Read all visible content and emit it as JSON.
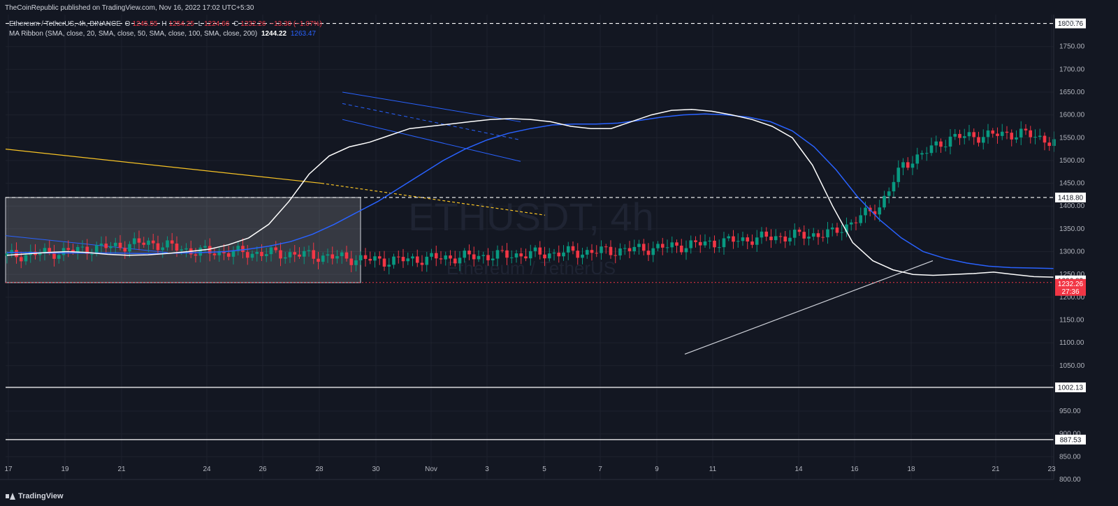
{
  "header": {
    "publisher": "TheCoinRepublic published on TradingView.com, Nov 16, 2022 17:02 UTC+5:30",
    "symbol": "Ethereum / TetherUS, 4h, BINANCE",
    "ohlc": {
      "o_label": "O",
      "o": "1245.55",
      "h_label": "H",
      "h": "1254.25",
      "l_label": "L",
      "l": "1224.66",
      "c_label": "C",
      "c": "1232.26",
      "change": "−13.30 (−1.07%)"
    },
    "indicator": "MA Ribbon (SMA, close, 20, SMA, close, 50, SMA, close, 100, SMA, close, 200)",
    "indicator_values": [
      "1244.22",
      "1263.47"
    ]
  },
  "currency": "USDT",
  "watermark": {
    "symbol": "ETHUSDT, 4h",
    "name": "Ethereum / TetherUS"
  },
  "brand": "TradingView",
  "countdown": "27:36",
  "colors": {
    "background": "#131722",
    "grid": "#1e222d",
    "up": "#089981",
    "down": "#f23645",
    "ma20": "#ffffff",
    "ma50": "#2962ff",
    "trend": "#f7c325"
  },
  "chart_data": {
    "type": "candlestick",
    "timeframe": "4h",
    "ylim": [
      800,
      1820
    ],
    "y_ticks": [
      800,
      850,
      900,
      950,
      1000,
      1050,
      1100,
      1150,
      1200,
      1250,
      1300,
      1350,
      1400,
      1450,
      1500,
      1550,
      1600,
      1650,
      1700,
      1750
    ],
    "x_ticks": [
      "17",
      "19",
      "21",
      "24",
      "26",
      "28",
      "30",
      "Nov",
      "3",
      "5",
      "7",
      "9",
      "11",
      "14",
      "16",
      "18",
      "21",
      "23"
    ],
    "horizontal_levels": [
      {
        "value": 1800.76,
        "label": "1800.76",
        "style": "dashed"
      },
      {
        "value": 1418.8,
        "label": "1418.80",
        "style": "dashed"
      },
      {
        "value": 1236.83,
        "label": "1236.83",
        "style": "solid"
      },
      {
        "value": 1002.13,
        "label": "1002.13",
        "style": "solid"
      },
      {
        "value": 887.53,
        "label": "887.53",
        "style": "solid"
      }
    ],
    "last_price": {
      "value": 1232.26,
      "label": "1232.26"
    },
    "series": [
      {
        "name": "Ethereum / TetherUS",
        "anchors": [
          [
            0,
            1290
          ],
          [
            12,
            1300
          ],
          [
            30,
            1320
          ],
          [
            40,
            1300
          ],
          [
            60,
            1295
          ],
          [
            80,
            1280
          ],
          [
            100,
            1290
          ],
          [
            125,
            1300
          ],
          [
            140,
            1310
          ],
          [
            160,
            1330
          ],
          [
            175,
            1340
          ],
          [
            185,
            1400
          ],
          [
            190,
            1490
          ],
          [
            200,
            1550
          ],
          [
            215,
            1560
          ],
          [
            230,
            1520
          ],
          [
            245,
            1500
          ],
          [
            258,
            1560
          ],
          [
            265,
            1600
          ],
          [
            285,
            1610
          ],
          [
            300,
            1590
          ],
          [
            315,
            1600
          ],
          [
            330,
            1580
          ],
          [
            345,
            1560
          ],
          [
            358,
            1540
          ],
          [
            368,
            1530
          ],
          [
            380,
            1610
          ],
          [
            395,
            1640
          ],
          [
            410,
            1620
          ],
          [
            425,
            1600
          ],
          [
            435,
            1560
          ],
          [
            440,
            1540
          ],
          [
            450,
            1480
          ],
          [
            462,
            1380
          ],
          [
            470,
            1280
          ],
          [
            476,
            1250
          ],
          [
            481,
            1220
          ],
          [
            486,
            1200
          ],
          [
            490,
            1160
          ],
          [
            496,
            1180
          ],
          [
            505,
            1230
          ],
          [
            512,
            1300
          ],
          [
            522,
            1270
          ],
          [
            530,
            1250
          ],
          [
            540,
            1260
          ],
          [
            550,
            1270
          ],
          [
            560,
            1240
          ],
          [
            570,
            1220
          ],
          [
            578,
            1230
          ],
          [
            585,
            1250
          ],
          [
            595,
            1265
          ],
          [
            605,
            1260
          ],
          [
            615,
            1240
          ],
          [
            622,
            1232
          ]
        ]
      },
      {
        "name": "SMA 20",
        "values": [
          1292,
          1295,
          1298,
          1300,
          1298,
          1294,
          1292,
          1293,
          1296,
          1300,
          1305,
          1315,
          1330,
          1360,
          1410,
          1470,
          1510,
          1530,
          1540,
          1555,
          1570,
          1575,
          1580,
          1585,
          1590,
          1592,
          1590,
          1585,
          1575,
          1570,
          1570,
          1585,
          1600,
          1610,
          1612,
          1608,
          1600,
          1590,
          1575,
          1550,
          1490,
          1400,
          1320,
          1280,
          1260,
          1250,
          1248,
          1250,
          1252,
          1255,
          1250,
          1245,
          1244
        ]
      },
      {
        "name": "SMA 50",
        "values": [
          1298,
          1298,
          1297,
          1297,
          1297,
          1297,
          1296,
          1296,
          1297,
          1298,
          1300,
          1305,
          1312,
          1322,
          1338,
          1360,
          1385,
          1410,
          1440,
          1470,
          1500,
          1525,
          1545,
          1560,
          1570,
          1578,
          1580,
          1580,
          1582,
          1588,
          1595,
          1600,
          1602,
          1600,
          1595,
          1585,
          1565,
          1530,
          1480,
          1420,
          1370,
          1330,
          1300,
          1285,
          1275,
          1268,
          1265,
          1264,
          1263
        ]
      }
    ],
    "annotations": [
      {
        "type": "rectangle",
        "from": [
          "17",
          1418.8
        ],
        "to": [
          "29",
          1232
        ]
      },
      {
        "type": "channel",
        "upper": [
          [
            "29",
            1650
          ],
          [
            "4",
            1540
          ]
        ],
        "lower": [
          [
            "29",
            1590
          ],
          [
            "4",
            1495
          ]
        ]
      },
      {
        "type": "trendline",
        "color": "yellow",
        "from": [
          "16",
          1525
        ],
        "to": [
          "3",
          1380
        ]
      },
      {
        "type": "trendline",
        "color": "white",
        "from": [
          "10",
          1075
        ],
        "to": [
          "19",
          1280
        ]
      }
    ]
  }
}
